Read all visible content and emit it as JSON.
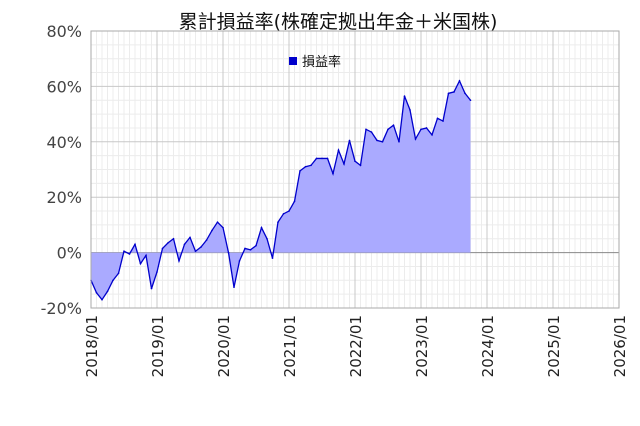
{
  "chart_data": {
    "type": "area",
    "title": "累計損益率(株確定拠出年金＋米国株)",
    "xlabel": "",
    "ylabel": "",
    "legend_position": "top-center",
    "grid": true,
    "ylim": [
      -20,
      80
    ],
    "y_ticks": [
      -20,
      0,
      20,
      40,
      60,
      80
    ],
    "y_tick_labels": [
      "-20%",
      "0%",
      "20%",
      "40%",
      "60%",
      "80%"
    ],
    "x_range": [
      "2018-01",
      "2026-01"
    ],
    "x_ticks": [
      "2018/01",
      "2019/01",
      "2020/01",
      "2021/01",
      "2022/01",
      "2023/01",
      "2024/01",
      "2025/01",
      "2026/01"
    ],
    "series": [
      {
        "name": "損益率",
        "line_color": "#0000cc",
        "fill_color": "#aaaaff",
        "points": [
          {
            "x": "2018-01",
            "y": -10
          },
          {
            "x": "2018-02",
            "y": -14.5
          },
          {
            "x": "2018-03",
            "y": -17
          },
          {
            "x": "2018-04",
            "y": -14
          },
          {
            "x": "2018-05",
            "y": -10
          },
          {
            "x": "2018-06",
            "y": -7.5
          },
          {
            "x": "2018-07",
            "y": 0.5
          },
          {
            "x": "2018-08",
            "y": -0.5
          },
          {
            "x": "2018-09",
            "y": 3
          },
          {
            "x": "2018-10",
            "y": -4
          },
          {
            "x": "2018-11",
            "y": -1
          },
          {
            "x": "2018-12",
            "y": -13
          },
          {
            "x": "2019-01",
            "y": -7
          },
          {
            "x": "2019-02",
            "y": 1.5
          },
          {
            "x": "2019-03",
            "y": 3.5
          },
          {
            "x": "2019-04",
            "y": 5
          },
          {
            "x": "2019-05",
            "y": -3
          },
          {
            "x": "2019-06",
            "y": 3
          },
          {
            "x": "2019-07",
            "y": 5.5
          },
          {
            "x": "2019-08",
            "y": 0.5
          },
          {
            "x": "2019-09",
            "y": 2
          },
          {
            "x": "2019-10",
            "y": 4.5
          },
          {
            "x": "2019-11",
            "y": 8
          },
          {
            "x": "2019-12",
            "y": 11
          },
          {
            "x": "2020-01",
            "y": 9
          },
          {
            "x": "2020-02",
            "y": 0
          },
          {
            "x": "2020-03",
            "y": -12.5
          },
          {
            "x": "2020-04",
            "y": -3
          },
          {
            "x": "2020-05",
            "y": 1.5
          },
          {
            "x": "2020-06",
            "y": 1
          },
          {
            "x": "2020-07",
            "y": 2.5
          },
          {
            "x": "2020-08",
            "y": 9
          },
          {
            "x": "2020-09",
            "y": 5
          },
          {
            "x": "2020-10",
            "y": -2
          },
          {
            "x": "2020-11",
            "y": 11
          },
          {
            "x": "2020-12",
            "y": 14
          },
          {
            "x": "2021-01",
            "y": 15
          },
          {
            "x": "2021-02",
            "y": 18.5
          },
          {
            "x": "2021-03",
            "y": 29.5
          },
          {
            "x": "2021-04",
            "y": 31
          },
          {
            "x": "2021-05",
            "y": 31.5
          },
          {
            "x": "2021-06",
            "y": 34
          },
          {
            "x": "2021-07",
            "y": 34
          },
          {
            "x": "2021-08",
            "y": 34
          },
          {
            "x": "2021-09",
            "y": 28.5
          },
          {
            "x": "2021-10",
            "y": 37
          },
          {
            "x": "2021-11",
            "y": 32
          },
          {
            "x": "2021-12",
            "y": 40.5
          },
          {
            "x": "2022-01",
            "y": 33
          },
          {
            "x": "2022-02",
            "y": 31.5
          },
          {
            "x": "2022-03",
            "y": 44.5
          },
          {
            "x": "2022-04",
            "y": 43.5
          },
          {
            "x": "2022-05",
            "y": 40.5
          },
          {
            "x": "2022-06",
            "y": 40
          },
          {
            "x": "2022-07",
            "y": 44.5
          },
          {
            "x": "2022-08",
            "y": 46
          },
          {
            "x": "2022-09",
            "y": 40
          },
          {
            "x": "2022-10",
            "y": 56.5
          },
          {
            "x": "2022-11",
            "y": 51.5
          },
          {
            "x": "2022-12",
            "y": 41
          },
          {
            "x": "2023-01",
            "y": 44.5
          },
          {
            "x": "2023-02",
            "y": 45
          },
          {
            "x": "2023-03",
            "y": 42.5
          },
          {
            "x": "2023-04",
            "y": 48.5
          },
          {
            "x": "2023-05",
            "y": 47.5
          },
          {
            "x": "2023-06",
            "y": 57.5
          },
          {
            "x": "2023-07",
            "y": 58
          },
          {
            "x": "2023-08",
            "y": 62
          },
          {
            "x": "2023-09",
            "y": 57.5
          },
          {
            "x": "2023-10",
            "y": 55
          }
        ]
      }
    ]
  }
}
